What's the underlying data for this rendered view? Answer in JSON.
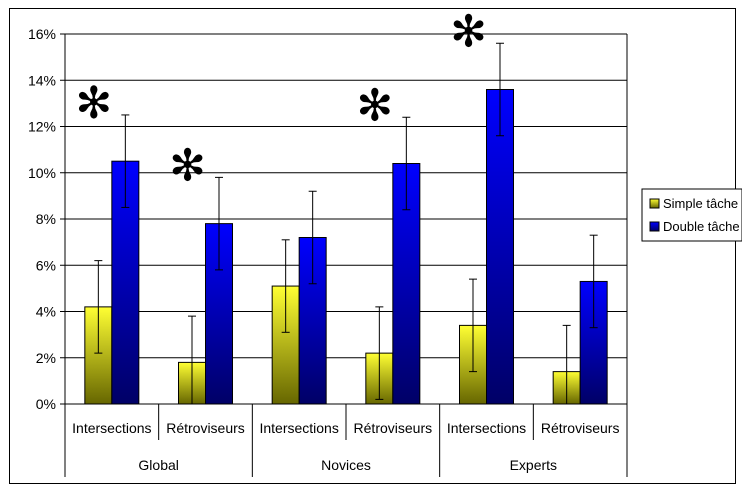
{
  "chart_data": {
    "type": "bar",
    "title": "",
    "xlabel": "",
    "ylabel": "",
    "ylim": [
      0,
      16
    ],
    "y_ticks": [
      "0%",
      "2%",
      "4%",
      "6%",
      "8%",
      "10%",
      "12%",
      "14%",
      "16%"
    ],
    "y_tick_values": [
      0,
      2,
      4,
      6,
      8,
      10,
      12,
      14,
      16
    ],
    "grid": true,
    "legend_position": "right",
    "groups": [
      "Global",
      "Novices",
      "Experts"
    ],
    "categories": [
      "Intersections",
      "Rétroviseurs",
      "Intersections",
      "Rétroviseurs",
      "Intersections",
      "Rétroviseurs"
    ],
    "category_group": [
      0,
      0,
      1,
      1,
      2,
      2
    ],
    "series": [
      {
        "name": "Simple tâche",
        "color_top": "#ffff33",
        "color_bottom": "#666600",
        "values": [
          4.2,
          1.8,
          5.1,
          2.2,
          3.4,
          1.4
        ],
        "errors": [
          2.0,
          2.0,
          2.0,
          2.0,
          2.0,
          2.0
        ]
      },
      {
        "name": "Double tâche",
        "color_top": "#0000ff",
        "color_bottom": "#000066",
        "values": [
          10.5,
          7.8,
          7.2,
          10.4,
          13.6,
          5.3
        ],
        "errors": [
          2.0,
          2.0,
          2.0,
          2.0,
          2.0,
          2.0
        ]
      }
    ],
    "annotations": [
      {
        "category_index": 0,
        "text": "✻"
      },
      {
        "category_index": 1,
        "text": "✻"
      },
      {
        "category_index": 3,
        "text": "✻"
      },
      {
        "category_index": 4,
        "text": "✻"
      }
    ]
  }
}
